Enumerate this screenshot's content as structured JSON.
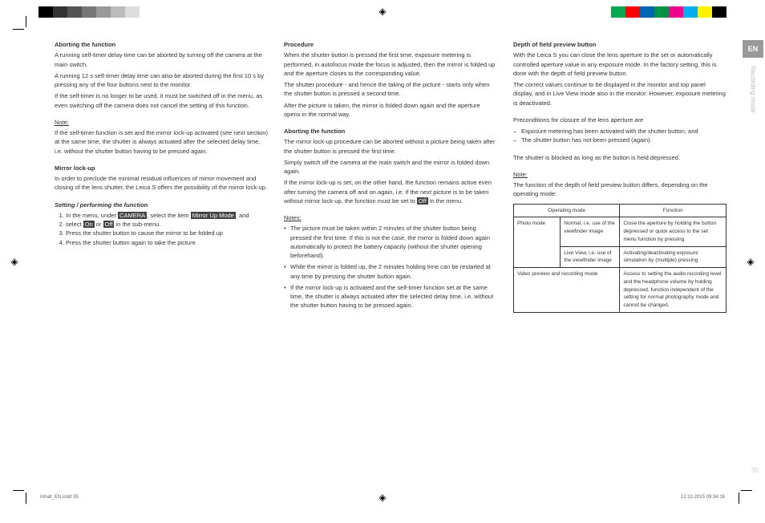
{
  "colorbar_left": [
    "#ffffff",
    "#000000",
    "#333333",
    "#555555",
    "#777777",
    "#999999",
    "#bbbbbb",
    "#dddddd",
    "#ffffff"
  ],
  "colorbar_right": [
    "#00a84f",
    "#ff0000",
    "#0066b3",
    "#009247",
    "#ec008c",
    "#00aeef",
    "#fff200",
    "#000000",
    "#ffffff"
  ],
  "side": {
    "lang": "EN",
    "section": "Recording mode"
  },
  "page_num": "35",
  "footer": {
    "left": "Inhalt_EN.indd   35",
    "right": "12.10.2015   09:34:16"
  },
  "col1": {
    "h1": "Aborting the function",
    "p1": "A running self-timer delay time can be aborted by turning off the camera at the main switch.",
    "p2": "A running 12 s self-timer delay time can also be aborted during the first 10 s by pressing any of the four buttons next to the monitor.",
    "p3": "If the self-timer is no longer to be used, it must be switched off in the menu, as even switching off the camera does not cancel the setting of this function.",
    "note_h": "Note:",
    "note_p": "If the self-timer function is set and the mirror lock-up activated (see next section) at the same time, the shutter is always actuated after the selected delay time, i.e. without the shutter button having to be pressed again.",
    "h2": "Mirror lock-up",
    "p4": "In order to preclude the minimal residual influences of mirror movement and closing of the lens shutter, the Leica S offers the possibility of the mirror lock-up.",
    "h3": "Setting / performing the function",
    "li1a": "In the menu, under ",
    "li1_cam": "CAMERA",
    "li1b": ", select the item ",
    "li1_mir": "Mirror Up Mode",
    "li1c": ", and",
    "li2a": "select ",
    "li2_on": "On",
    "li2b": " or ",
    "li2_off": "Off",
    "li2c": " in the sub-menu.",
    "li3": "Press the shutter button to cause the mirror to be folded up",
    "li4": "Press the shutter button again to take the picture"
  },
  "col2": {
    "h1": "Procedure",
    "p1": "When the shutter button is pressed the first time, exposure metering is performed, in autofocus mode the focus is adjusted, then the mirror is folded up and the aperture closes to the corresponding value.",
    "p2": "The shutter procedure - and hence the taking of the picture - starts only when the shutter button is pressed a second time.",
    "p3": "After the picture is taken, the mirror is folded down again and the aperture opens in the normal way.",
    "h2": "Aborting the function",
    "p4": "The mirror lock-up procedure can be aborted without a picture being taken after the shutter button is pressed the first time.",
    "p5": "Simply switch off the camera at the main switch and the mirror is folded down again.",
    "p6a": "If the mirror lock-up is set, on the other hand, the function remains active even after turning the camera off and on again, i.e. if the next picture is to be taken without mirror lock-up, the function must be set to ",
    "p6_off": "Off",
    "p6b": " in the menu.",
    "notes_h": "Notes:",
    "n1": "The picture must be taken within 2 minutes of the shutter button being pressed the first time. If this is not the case, the mirror is folded down again automatically to protect the battery capacity (without the shutter opening beforehand).",
    "n2": "While the mirror is folded up, the 2 minutes holding time can be restarted at any time by pressing the shutter button again.",
    "n3": "If the mirror lock-up is activated and the self-timer function set at the same time, the shutter is always actuated after the selected delay time, i.e. without the shutter button having to be pressed again."
  },
  "col3": {
    "h1": "Depth of field preview button",
    "p1": "With the Leica S you can close the lens aperture to the set or automatically controlled aperture value in any exposure mode. In the factory setting, this is done with the depth of field preview button.",
    "p2": "The correct values continue to be displayed in the monitor and top panel display, and in Live View mode also in the monitor. However, exposure metering is deactivated.",
    "p3": "Preconditions for closure of the lens aperture are",
    "d1": "Exposure metering has been activated with the shutter button, and",
    "d2": "The shutter button has not been pressed (again).",
    "p4": "The shutter is blocked as long as the button is held depressed.",
    "note_h": "Note:",
    "note_p": "The function of the depth of field preview button differs, depending on the operating mode:",
    "table": {
      "th1": "Operating mode",
      "th2": "Function",
      "r1c1": "Photo mode",
      "r1c2": "Normal, i.e. use of the viewfinder image",
      "r1c3": "Close the aperture by holding the button depressed or quick access to the set menu function by pressing",
      "r2c2": "Live View, i.e. use of the viewfinder image",
      "r2c3": "Activating/deactivating exposure simulation by (multiple) pressing",
      "r3c1": "Video preview and recording mode",
      "r3c3": "Access to setting the audio recording level and the headphone volume by holding depressed, function independent of the setting for normal photography mode and cannot be changed."
    }
  }
}
